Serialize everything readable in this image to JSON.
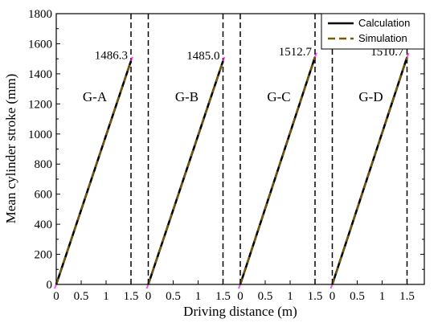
{
  "chart_data": {
    "type": "line",
    "xlabel": "Driving distance (m)",
    "ylabel": "Mean cylinder stroke (mm)",
    "ylim": [
      0,
      1800
    ],
    "y_ticks": [
      "0",
      "200",
      "400",
      "600",
      "800",
      "1000",
      "1200",
      "1400",
      "1600",
      "1800"
    ],
    "x_tick_labels": [
      "0",
      "0.5",
      "1",
      "1.5"
    ],
    "grid": false,
    "legend": {
      "placement": "top-right",
      "entries": [
        {
          "label": "Calculation",
          "color": "#000000",
          "style": "solid"
        },
        {
          "label": "Simulation",
          "color": "#7a5a00",
          "style": "dashed"
        }
      ]
    },
    "marker_color": "#ff00ff",
    "panels": [
      {
        "label": "G-A",
        "xlim": [
          0,
          1.5
        ],
        "end_value_label": "1486.3",
        "series": [
          {
            "name": "Calculation",
            "x": [
              0,
              1.5
            ],
            "y": [
              0,
              1486.3
            ]
          },
          {
            "name": "Simulation",
            "x": [
              0,
              1.5
            ],
            "y": [
              0,
              1486.3
            ]
          }
        ]
      },
      {
        "label": "G-B",
        "xlim": [
          0,
          1.5
        ],
        "end_value_label": "1485.0",
        "series": [
          {
            "name": "Calculation",
            "x": [
              0,
              1.5
            ],
            "y": [
              0,
              1485.0
            ]
          },
          {
            "name": "Simulation",
            "x": [
              0,
              1.5
            ],
            "y": [
              0,
              1485.0
            ]
          }
        ]
      },
      {
        "label": "G-C",
        "xlim": [
          0,
          1.5
        ],
        "end_value_label": "1512.7",
        "series": [
          {
            "name": "Calculation",
            "x": [
              0,
              1.5
            ],
            "y": [
              0,
              1512.7
            ]
          },
          {
            "name": "Simulation",
            "x": [
              0,
              1.5
            ],
            "y": [
              0,
              1512.7
            ]
          }
        ]
      },
      {
        "label": "G-D",
        "xlim": [
          0,
          1.5
        ],
        "end_value_label": "1510.7",
        "series": [
          {
            "name": "Calculation",
            "x": [
              0,
              1.5
            ],
            "y": [
              0,
              1510.7
            ]
          },
          {
            "name": "Simulation",
            "x": [
              0,
              1.5
            ],
            "y": [
              0,
              1510.7
            ]
          }
        ]
      }
    ]
  }
}
